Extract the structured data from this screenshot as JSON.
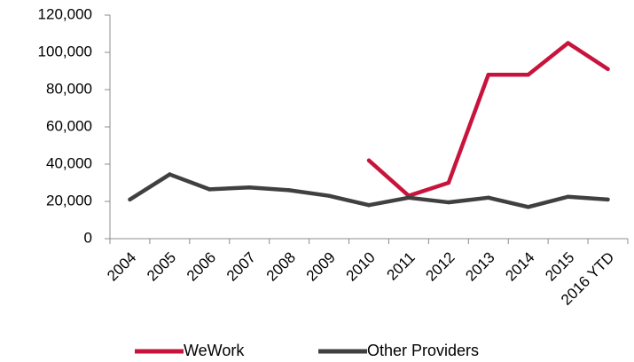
{
  "chart_data": {
    "type": "line",
    "categories": [
      "2004",
      "2005",
      "2006",
      "2007",
      "2008",
      "2009",
      "2010",
      "2011",
      "2012",
      "2013",
      "2014",
      "2015",
      "2016 YTD"
    ],
    "ylim": [
      0,
      120000
    ],
    "yticks": [
      0,
      20000,
      40000,
      60000,
      80000,
      100000,
      120000
    ],
    "ytick_labels": [
      "0",
      "20,000",
      "40,000",
      "60,000",
      "80,000",
      "100,000",
      "120,000"
    ],
    "grid": false,
    "legend_position": "bottom",
    "series": [
      {
        "name": "WeWork",
        "color": "#c8143c",
        "values": [
          null,
          null,
          null,
          null,
          null,
          null,
          42000,
          23000,
          30000,
          88000,
          88000,
          105000,
          91000
        ]
      },
      {
        "name": "Other Providers",
        "color": "#404040",
        "values": [
          21000,
          34500,
          26500,
          27500,
          26000,
          23000,
          18000,
          22000,
          19500,
          22000,
          17000,
          22500,
          21000
        ]
      }
    ]
  }
}
